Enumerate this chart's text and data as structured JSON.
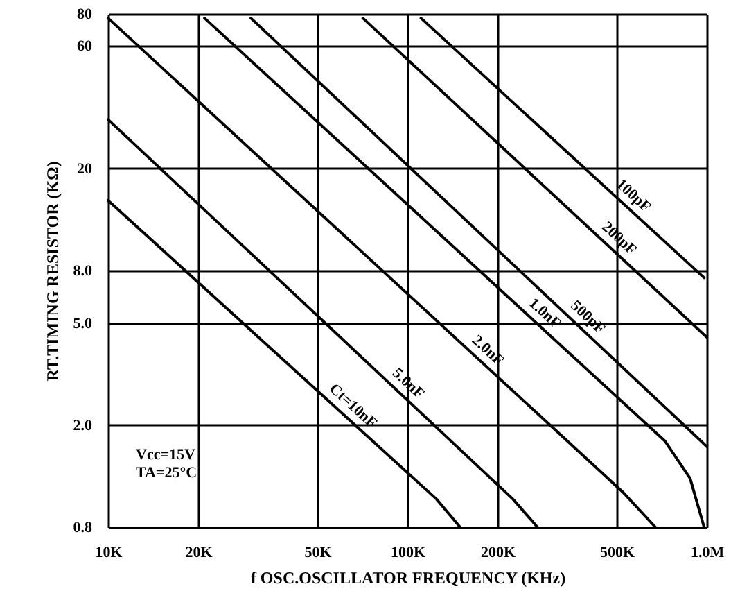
{
  "chart_data": {
    "type": "line",
    "xlabel": "f OSC.OSCILLATOR FREQUENCY (KHz)",
    "ylabel": "RT.TIMING RESISTOR (KΩ)",
    "log": "xy",
    "grid": true,
    "marker": "none",
    "line_style": "solid",
    "xlim": [
      10000,
      1000000
    ],
    "xticks": [
      {
        "value": 10000,
        "label": "10K"
      },
      {
        "value": 20000,
        "label": "20K"
      },
      {
        "value": 50000,
        "label": "50K"
      },
      {
        "value": 100000,
        "label": "100K"
      },
      {
        "value": 200000,
        "label": "200K"
      },
      {
        "value": 500000,
        "label": "500K"
      },
      {
        "value": 1000000,
        "label": "1.0M"
      }
    ],
    "ylim": [
      0.8,
      80
    ],
    "yticks": [
      {
        "value": 0.8,
        "label": "0.8"
      },
      {
        "value": 2,
        "label": "2.0"
      },
      {
        "value": 5,
        "label": "5.0"
      },
      {
        "value": 8,
        "label": "8.0"
      },
      20,
      60,
      80
    ],
    "series": [
      {
        "name": "100pF",
        "color": "#000000",
        "x": [
          111000,
          980000
        ],
        "values": [
          77,
          7.5
        ]
      },
      {
        "name": "200pF",
        "color": "#000000",
        "x": [
          71000,
          1000000
        ],
        "values": [
          77,
          4.4
        ]
      },
      {
        "name": "500pF",
        "color": "#000000",
        "x": [
          30000,
          1000000
        ],
        "values": [
          77,
          1.65
        ]
      },
      {
        "name": "1.0nF",
        "color": "#000000",
        "x": [
          21000,
          726000,
          880000,
          980000
        ],
        "values": [
          77,
          1.73,
          1.24,
          0.8
        ]
      },
      {
        "name": "2.0nF",
        "color": "#000000",
        "x": [
          10000,
          527000,
          674000
        ],
        "values": [
          77,
          1.09,
          0.8
        ]
      },
      {
        "name": "5.0nF",
        "color": "#000000",
        "x": [
          10000,
          225000,
          272000
        ],
        "values": [
          31,
          1.03,
          0.8
        ]
      },
      {
        "name": "Ct=10nF",
        "color": "#000000",
        "x": [
          10000,
          125000,
          150000
        ],
        "values": [
          15,
          1.03,
          0.8
        ]
      }
    ],
    "annotations": [
      "Vcc=15V",
      "TA=25°C"
    ]
  }
}
